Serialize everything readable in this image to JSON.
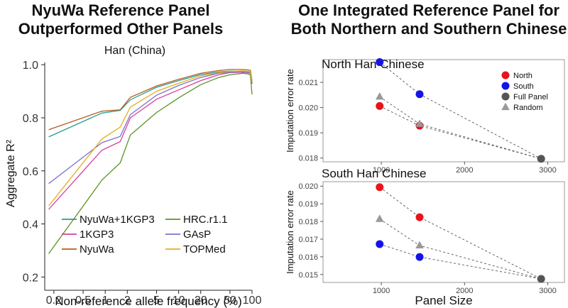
{
  "figure": {
    "left_heading_line1": "NyuWa Reference Panel",
    "left_heading_line2": "Outperformed Other Panels",
    "right_heading_line1": "One Integrated Reference Panel for",
    "right_heading_line2": "Both Northern and Southern Chinese"
  },
  "chart_data": [
    {
      "type": "line",
      "title": "Han (China)",
      "xlabel": "Non-reference allele frequency (%)",
      "ylabel": "Aggregate R²",
      "xscale": "log",
      "xlim": [
        0.15,
        100
      ],
      "ylim": [
        0.15,
        1.03
      ],
      "xticks": [
        0.2,
        0.5,
        1,
        2,
        5,
        10,
        20,
        50,
        100
      ],
      "xtick_labels": [
        "0.2",
        "0.5",
        "1",
        "2",
        "5",
        "10",
        "20",
        "50",
        "100"
      ],
      "yticks": [
        0.2,
        0.4,
        0.6,
        0.8,
        1.0
      ],
      "ytick_labels": [
        "0.2",
        "0.4",
        "0.6",
        "0.8",
        "1.0"
      ],
      "legend_position": "bottom-right",
      "x": [
        0.17,
        0.9,
        1.6,
        2.2,
        5,
        10,
        20,
        35,
        50,
        75,
        90,
        95,
        100
      ],
      "series": [
        {
          "name": "NyuWa+1KGP3",
          "color": "#2a9d8f",
          "values": [
            0.728,
            0.818,
            0.828,
            0.868,
            0.915,
            0.94,
            0.963,
            0.973,
            0.976,
            0.976,
            0.972,
            0.97,
            0.93
          ]
        },
        {
          "name": "1KGP3",
          "color": "#d63f9b",
          "values": [
            0.455,
            0.678,
            0.71,
            0.8,
            0.87,
            0.905,
            0.94,
            0.962,
            0.97,
            0.972,
            0.97,
            0.968,
            0.93
          ]
        },
        {
          "name": "NyuWa",
          "color": "#b85b1e",
          "values": [
            0.755,
            0.825,
            0.83,
            0.877,
            0.92,
            0.945,
            0.968,
            0.978,
            0.982,
            0.982,
            0.98,
            0.978,
            0.94
          ]
        },
        {
          "name": "HRC.r1.1",
          "color": "#5a9423",
          "values": [
            0.288,
            0.565,
            0.63,
            0.735,
            0.82,
            0.875,
            0.925,
            0.952,
            0.962,
            0.968,
            0.965,
            0.96,
            0.888
          ]
        },
        {
          "name": "GAsP",
          "color": "#7b72c9",
          "values": [
            0.552,
            0.706,
            0.73,
            0.812,
            0.885,
            0.922,
            0.952,
            0.968,
            0.972,
            0.974,
            0.97,
            0.968,
            0.928
          ]
        },
        {
          "name": "TOPMed",
          "color": "#e6ab1e",
          "values": [
            0.468,
            0.72,
            0.765,
            0.84,
            0.9,
            0.93,
            0.958,
            0.97,
            0.975,
            0.977,
            0.975,
            0.972,
            0.935
          ]
        }
      ]
    },
    {
      "type": "scatter",
      "title": "North Han Chinese",
      "xlabel": "",
      "ylabel": "Imputation error rate",
      "xlim": [
        300,
        3200
      ],
      "ylim": [
        0.01785,
        0.0219
      ],
      "xticks": [
        1000,
        2000,
        3000
      ],
      "xtick_labels": [
        "1000",
        "2000",
        "3000"
      ],
      "yticks": [
        0.018,
        0.019,
        0.02,
        0.021
      ],
      "ytick_labels": [
        "0.018",
        "0.019",
        "0.020",
        "0.021"
      ],
      "legend_position": "top-right",
      "legend": [
        {
          "name": "North",
          "color": "#e8141a",
          "shape": "circle"
        },
        {
          "name": "South",
          "color": "#1414e8",
          "shape": "circle"
        },
        {
          "name": "Full Panel",
          "color": "#555555",
          "shape": "circle"
        },
        {
          "name": "Random",
          "color": "#999999",
          "shape": "triangle"
        }
      ],
      "series": [
        {
          "name": "North",
          "color": "#e8141a",
          "shape": "circle",
          "x": [
            980,
            1460
          ],
          "values": [
            0.02006,
            0.01928
          ]
        },
        {
          "name": "South",
          "color": "#1414e8",
          "shape": "circle",
          "x": [
            980,
            1460
          ],
          "values": [
            0.0218,
            0.02053
          ]
        },
        {
          "name": "Random",
          "color": "#999999",
          "shape": "triangle",
          "x": [
            980,
            1460
          ],
          "values": [
            0.02043,
            0.01935
          ]
        },
        {
          "name": "Full Panel",
          "color": "#555555",
          "shape": "circle",
          "x": [
            2920
          ],
          "values": [
            0.01797
          ]
        }
      ]
    },
    {
      "type": "scatter",
      "title": "South Han Chinese",
      "xlabel": "Panel Size",
      "ylabel": "Imputation error rate",
      "xlim": [
        300,
        3200
      ],
      "ylim": [
        0.01455,
        0.02025
      ],
      "xticks": [
        1000,
        2000,
        3000
      ],
      "xtick_labels": [
        "1000",
        "2000",
        "3000"
      ],
      "yticks": [
        0.015,
        0.016,
        0.017,
        0.018,
        0.019,
        0.02
      ],
      "ytick_labels": [
        "0.015",
        "0.016",
        "0.017",
        "0.018",
        "0.019",
        "0.020"
      ],
      "series": [
        {
          "name": "North",
          "color": "#e8141a",
          "shape": "circle",
          "x": [
            980,
            1460
          ],
          "values": [
            0.01994,
            0.01824
          ]
        },
        {
          "name": "South",
          "color": "#1414e8",
          "shape": "circle",
          "x": [
            980,
            1460
          ],
          "values": [
            0.01672,
            0.01599
          ]
        },
        {
          "name": "Random",
          "color": "#999999",
          "shape": "triangle",
          "x": [
            980,
            1460
          ],
          "values": [
            0.01814,
            0.01664
          ]
        },
        {
          "name": "Full Panel",
          "color": "#555555",
          "shape": "circle",
          "x": [
            2920
          ],
          "values": [
            0.01475
          ]
        }
      ]
    }
  ]
}
